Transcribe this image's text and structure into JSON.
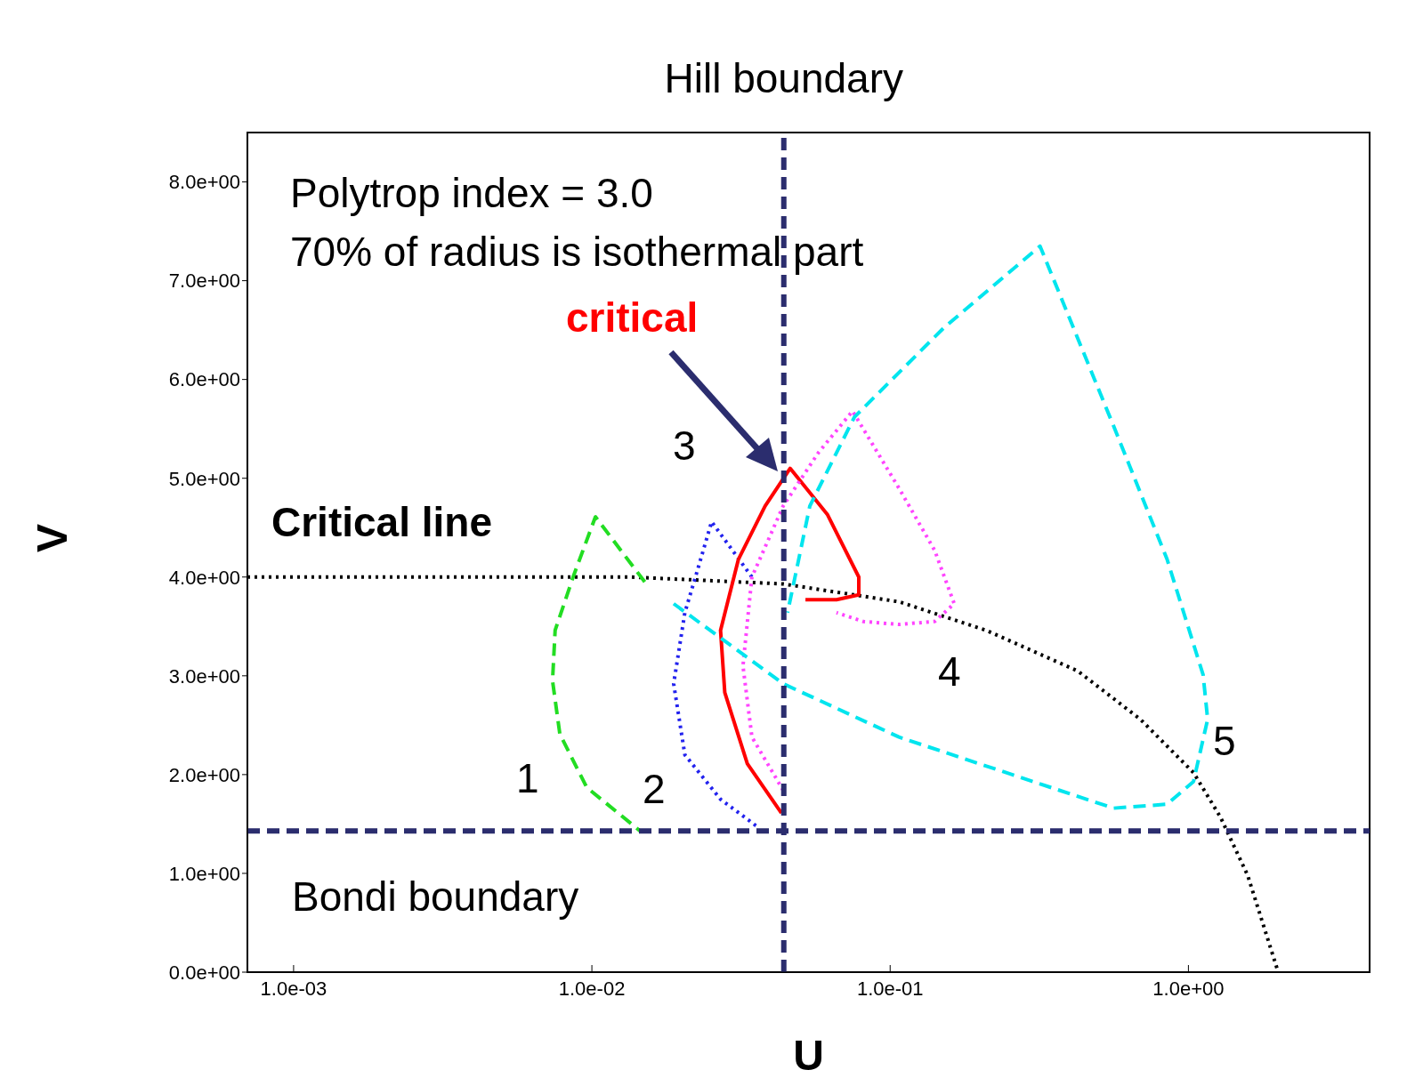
{
  "chart_data": {
    "type": "line",
    "xlabel": "U",
    "ylabel": "V",
    "log": "x",
    "xlim": [
      0.0007,
      4.05
    ],
    "ylim": [
      0,
      8.5
    ],
    "xticks": [
      {
        "value": 0.001,
        "label": "1.0e-03"
      },
      {
        "value": 0.01,
        "label": "1.0e-02"
      },
      {
        "value": 0.1,
        "label": "1.0e-01"
      },
      {
        "value": 1,
        "label": "1.0e+00"
      }
    ],
    "yticks": [
      {
        "value": 0,
        "label": "0.0e+00"
      },
      {
        "value": 1,
        "label": "1.0e+00"
      },
      {
        "value": 2,
        "label": "2.0e+00"
      },
      {
        "value": 3,
        "label": "3.0e+00"
      },
      {
        "value": 4,
        "label": "4.0e+00"
      },
      {
        "value": 5,
        "label": "5.0e+00"
      },
      {
        "value": 6,
        "label": "6.0e+00"
      },
      {
        "value": 7,
        "label": "7.0e+00"
      },
      {
        "value": 8,
        "label": "8.0e+00"
      }
    ],
    "marker": "none",
    "series": [
      {
        "color": "#000000",
        "line_style": "dotted",
        "x": [
          0.0007,
          0.0135,
          0.0438,
          0.107,
          0.21,
          0.425,
          0.69,
          1.04,
          1.28,
          1.58,
          2.0
        ],
        "values": [
          4.0,
          4.0,
          3.93,
          3.75,
          3.46,
          3.05,
          2.56,
          2.02,
          1.57,
          0.98,
          0
        ]
      },
      {
        "color": "#22dd22",
        "line_style": "dashed",
        "x": [
          0.01504,
          0.01028,
          0.00865,
          0.00753,
          0.00738,
          0.00781,
          0.00961,
          0.0145
        ],
        "values": [
          3.95,
          4.61,
          4.0,
          3.46,
          2.95,
          2.41,
          1.87,
          1.43
        ]
      },
      {
        "color": "#2222ee",
        "line_style": "dotted",
        "x": [
          0.0344,
          0.0252,
          0.0227,
          0.0205,
          0.0188,
          0.0205,
          0.027,
          0.0356
        ],
        "values": [
          4.0,
          4.56,
          4.09,
          3.64,
          2.92,
          2.2,
          1.75,
          1.48
        ]
      },
      {
        "color": "#ff0000",
        "line_style": "solid",
        "x": [
          0.0432,
          0.0332,
          0.0279,
          0.027,
          0.031,
          0.0381,
          0.0462,
          0.0617,
          0.0785,
          0.0785,
          0.0661,
          0.052
        ],
        "values": [
          1.61,
          2.11,
          2.83,
          3.46,
          4.18,
          4.72,
          5.1,
          4.63,
          4.0,
          3.82,
          3.77,
          3.77
        ]
      },
      {
        "color": "#ff44ff",
        "line_style": "dotted",
        "x": [
          0.0438,
          0.0344,
          0.0321,
          0.0344,
          0.0438,
          0.0575,
          0.0748,
          0.107,
          0.141,
          0.164,
          0.141,
          0.107,
          0.0813,
          0.0661
        ],
        "values": [
          1.84,
          2.38,
          3.1,
          4.0,
          4.72,
          5.26,
          5.68,
          4.9,
          4.27,
          3.73,
          3.55,
          3.52,
          3.55,
          3.64
        ]
      },
      {
        "color": "#00e5ee",
        "line_style": "dashed",
        "x": [
          0.0188,
          0.0438,
          0.107,
          0.301,
          0.561,
          0.848,
          1.04,
          1.16,
          1.12,
          0.848,
          0.561,
          0.318,
          0.151,
          0.0759,
          0.0538,
          0.0453
        ],
        "values": [
          3.73,
          2.92,
          2.38,
          1.93,
          1.66,
          1.7,
          1.93,
          2.56,
          3.01,
          4.18,
          5.53,
          7.35,
          6.52,
          5.62,
          4.72,
          3.64
        ]
      }
    ],
    "ref_lines": [
      {
        "axis": "x",
        "value": 0.044,
        "label": "Hill boundary",
        "color": "#2b2d6e",
        "line_style": "dashed"
      },
      {
        "axis": "y",
        "value": 1.43,
        "label": "Bondi boundary",
        "color": "#2b2d6e",
        "line_style": "dashed"
      }
    ],
    "annotations": [
      "Polytrop index = 3.0",
      "70% of radius is isothermal part",
      "critical",
      "Critical line",
      "1",
      "2",
      "3",
      "4",
      "5"
    ]
  }
}
